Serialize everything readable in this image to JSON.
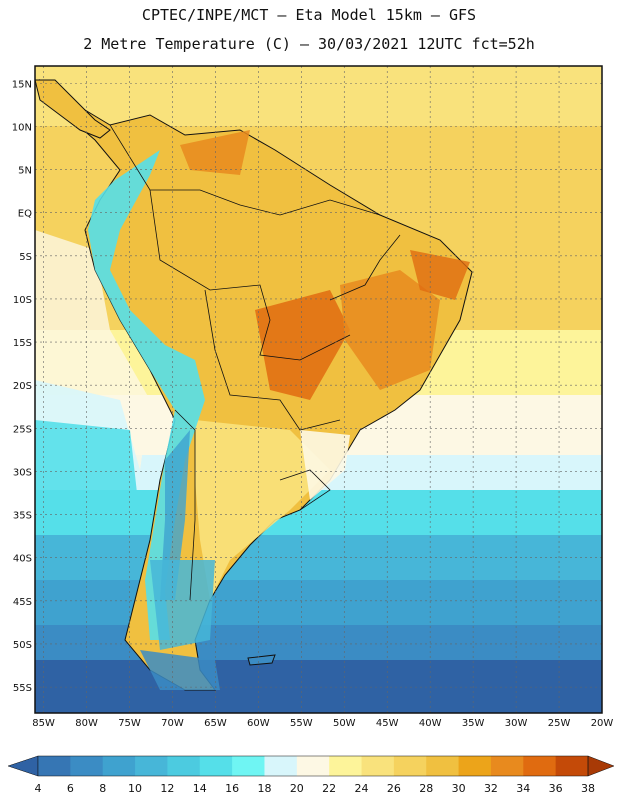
{
  "header": {
    "line1": "CPTEC/INPE/MCT –  Eta Model 15km – GFS",
    "line2": "2 Metre Temperature (C) – 30/03/2021 12UTC fct=52h"
  },
  "map": {
    "region": "South America",
    "lat_range": [
      -58,
      17
    ],
    "lon_range": [
      -86,
      -20
    ],
    "lat_labels": [
      "15N",
      "10N",
      "5N",
      "EQ",
      "5S",
      "10S",
      "15S",
      "20S",
      "25S",
      "30S",
      "35S",
      "40S",
      "45S",
      "50S",
      "55S"
    ],
    "lon_labels": [
      "85W",
      "80W",
      "75W",
      "70W",
      "65W",
      "60W",
      "55W",
      "50W",
      "45W",
      "40W",
      "35W",
      "30W",
      "25W",
      "20W"
    ]
  },
  "colorbar": {
    "unit": "C",
    "labels": [
      "4",
      "6",
      "8",
      "10",
      "12",
      "14",
      "16",
      "18",
      "20",
      "22",
      "24",
      "26",
      "28",
      "30",
      "32",
      "34",
      "36",
      "38"
    ],
    "colors": [
      "#2f62a4",
      "#3676b4",
      "#3b8cc4",
      "#3fa2cf",
      "#47b6d8",
      "#4ccbe0",
      "#55dfe9",
      "#6ff5f3",
      "#d8f6fb",
      "#fdf8e4",
      "#fdf49a",
      "#f9e27c",
      "#f5d25e",
      "#f0c040",
      "#eca41a",
      "#e88a1e",
      "#e06b10",
      "#c44a08",
      "#a83a06"
    ]
  }
}
